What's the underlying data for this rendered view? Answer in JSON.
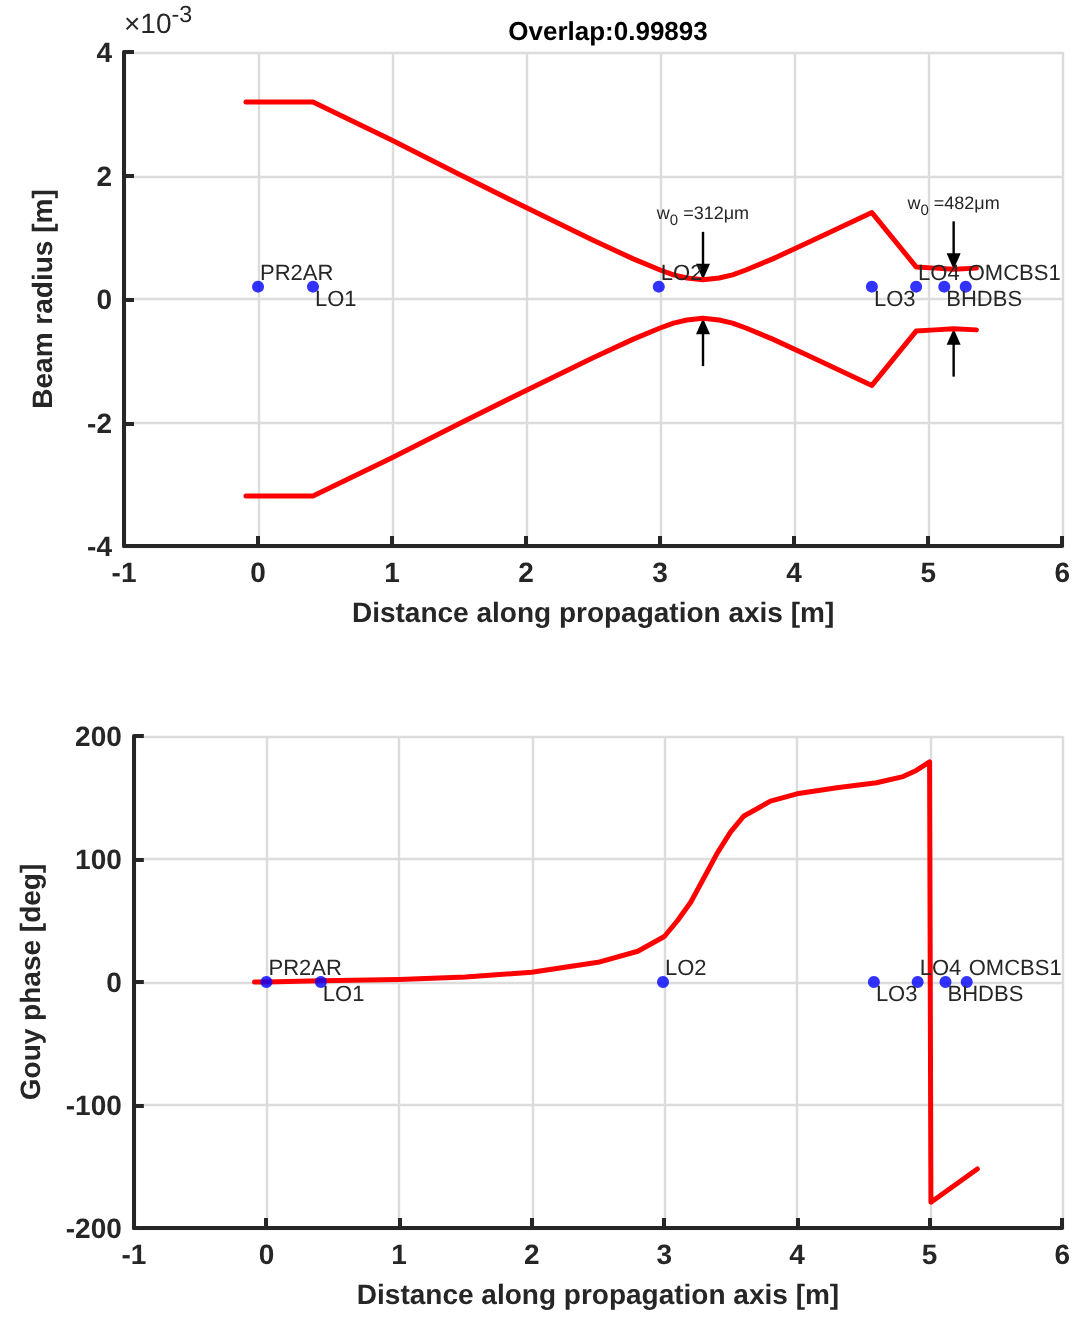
{
  "chart_data": [
    {
      "type": "line",
      "title": "Overlap:0.99893",
      "xlabel": "Distance along propagation axis [m]",
      "ylabel": "Beam radius [m]",
      "xlim": [
        -1,
        6
      ],
      "xticks": [
        -1,
        0,
        1,
        2,
        3,
        4,
        5,
        6
      ],
      "ylim": [
        -4,
        4
      ],
      "yticks": [
        -4,
        -2,
        0,
        2,
        4
      ],
      "grid": true,
      "line_style": "solid",
      "series": [
        {
          "type": "line",
          "color": "#ff0000",
          "marker": "none",
          "x": [
            -0.09,
            0.41,
            1.0,
            1.5,
            2.0,
            2.5,
            2.8,
            3.0,
            3.1,
            3.2,
            3.32,
            3.44,
            3.54,
            3.64,
            3.84,
            4.14,
            4.58,
            4.91,
            5.05,
            5.19,
            5.36
          ],
          "values": [
            3.19,
            3.19,
            2.57,
            2.02,
            1.48,
            0.95,
            0.65,
            0.47,
            0.39,
            0.34,
            0.31,
            0.34,
            0.39,
            0.47,
            0.65,
            0.95,
            1.4,
            0.52,
            0.5,
            0.48,
            0.5
          ]
        },
        {
          "type": "line",
          "color": "#ff0000",
          "marker": "none",
          "x": [
            -0.09,
            0.41,
            1.0,
            1.5,
            2.0,
            2.5,
            2.8,
            3.0,
            3.1,
            3.2,
            3.32,
            3.44,
            3.54,
            3.64,
            3.84,
            4.14,
            4.58,
            4.91,
            5.05,
            5.19,
            5.36
          ],
          "values": [
            -3.19,
            -3.19,
            -2.57,
            -2.02,
            -1.48,
            -0.95,
            -0.65,
            -0.47,
            -0.39,
            -0.34,
            -0.31,
            -0.34,
            -0.39,
            -0.47,
            -0.65,
            -0.95,
            -1.4,
            -0.52,
            -0.5,
            -0.48,
            -0.5
          ]
        },
        {
          "type": "scatter",
          "color": "#0000ff",
          "marker": "circle",
          "x": [
            0,
            0.41,
            2.99,
            4.58,
            4.91,
            5.12,
            5.28
          ],
          "values": [
            0.2,
            0.2,
            0.2,
            0.2,
            0.2,
            0.2,
            0.2
          ]
        }
      ],
      "annotations": [
        "×10$^{-3}$",
        {
          "text": "w$_{0}$ =312μm",
          "x": 3.32,
          "y": 0.31
        },
        {
          "text": "w$_{0}$ =482μm",
          "x": 5.19,
          "y": 0.48
        },
        {
          "text": "PR2AR",
          "x": 0,
          "y": 0.2
        },
        {
          "text": "LO1",
          "x": 0.41,
          "y": 0.2
        },
        {
          "text": "LO2",
          "x": 2.99,
          "y": 0.2
        },
        {
          "text": "LO3",
          "x": 4.58,
          "y": 0.2
        },
        {
          "text": "LO4",
          "x": 4.91,
          "y": 0.2
        },
        {
          "text": "BHDBS",
          "x": 5.12,
          "y": 0.2
        },
        {
          "text": "OMCBS1",
          "x": 5.28,
          "y": 0.2
        }
      ]
    },
    {
      "type": "line",
      "xlabel": "Distance along propagation axis [m]",
      "ylabel": "Gouy phase [deg]",
      "xlim": [
        -1,
        6
      ],
      "xticks": [
        -1,
        0,
        1,
        2,
        3,
        4,
        5,
        6
      ],
      "ylim": [
        -200,
        200
      ],
      "yticks": [
        -200,
        -100,
        0,
        100,
        200
      ],
      "grid": true,
      "line_style": "solid",
      "series": [
        {
          "type": "line",
          "color": "#ff0000",
          "marker": "none",
          "x": [
            -0.09,
            0,
            0.41,
            1.0,
            1.5,
            2.0,
            2.5,
            2.8,
            3.0,
            3.1,
            3.2,
            3.3,
            3.4,
            3.5,
            3.6,
            3.8,
            4.0,
            4.3,
            4.6,
            4.8,
            4.9,
            5.0,
            5.01,
            5.01,
            5.36
          ],
          "values": [
            0,
            0,
            1,
            2,
            4,
            8,
            16,
            25,
            37,
            50,
            65,
            85,
            105,
            122,
            135,
            147,
            153,
            158,
            162,
            167,
            172,
            179,
            179,
            -179,
            -152
          ]
        },
        {
          "type": "scatter",
          "color": "#0000ff",
          "marker": "circle",
          "x": [
            0,
            0.41,
            2.99,
            4.58,
            4.91,
            5.12,
            5.28
          ],
          "values": [
            0,
            0,
            0,
            0,
            0,
            0,
            0
          ]
        }
      ],
      "annotations": [
        {
          "text": "PR2AR",
          "x": 0,
          "y": 0
        },
        {
          "text": "LO1",
          "x": 0.41,
          "y": 0
        },
        {
          "text": "LO2",
          "x": 2.99,
          "y": 0
        },
        {
          "text": "LO3",
          "x": 4.58,
          "y": 0
        },
        {
          "text": "LO4",
          "x": 4.91,
          "y": 0
        },
        {
          "text": "BHDBS",
          "x": 5.12,
          "y": 0
        },
        {
          "text": "OMCBS1",
          "x": 5.28,
          "y": 0
        }
      ]
    }
  ]
}
